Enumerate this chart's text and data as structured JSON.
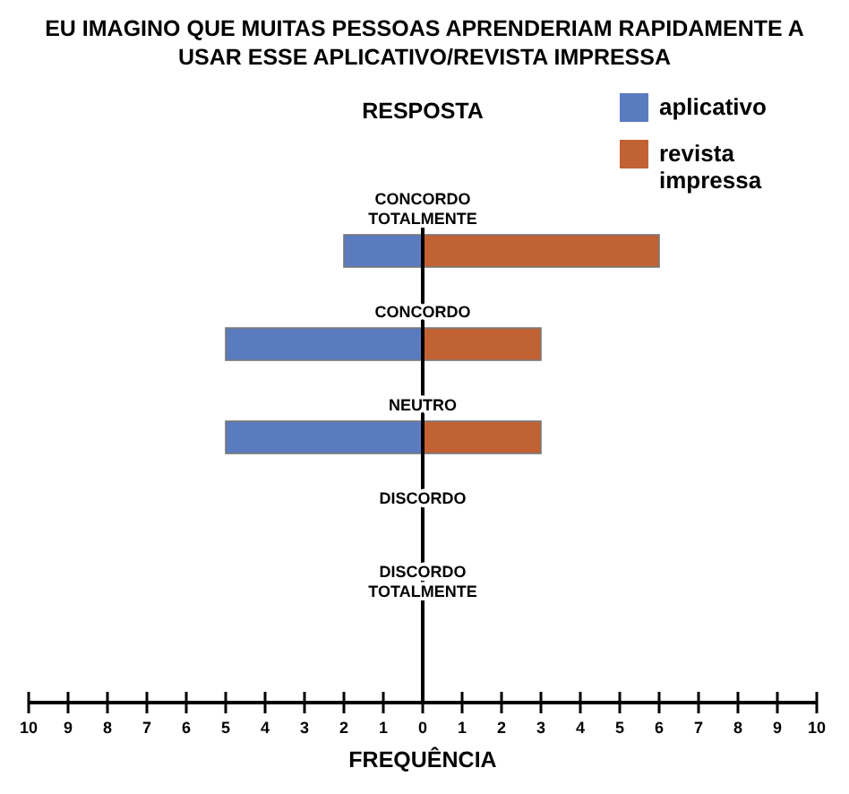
{
  "chart_data": {
    "type": "bar",
    "orientation": "horizontal",
    "stacked": true,
    "title": "EU IMAGINO QUE MUITAS PESSOAS APRENDERIAM RAPIDAMENTE A USAR ESSE APLICATIVO/REVISTA IMPRESSA",
    "ylabel": "RESPOSTA",
    "xlabel": "FREQUÊNCIA",
    "categories": [
      "CONCORDO TOTALMENTE",
      "CONCORDO",
      "NEUTRO",
      "DISCORDO",
      "DISCORDO TOTALMENTE"
    ],
    "series": [
      {
        "name": "aplicativo",
        "color": "#5b7bbf",
        "values": [
          -2,
          -5,
          -5,
          0,
          0
        ]
      },
      {
        "name": "revista impressa",
        "color": "#c06234",
        "values": [
          6,
          3,
          3,
          0,
          0
        ]
      }
    ],
    "xlim": [
      -10,
      10
    ],
    "xticks": [
      {
        "value": -10,
        "label": "10"
      },
      {
        "value": -9,
        "label": "9"
      },
      {
        "value": -8,
        "label": "8"
      },
      {
        "value": -7,
        "label": "7"
      },
      {
        "value": -6,
        "label": "6"
      },
      {
        "value": -5,
        "label": "5"
      },
      {
        "value": -4,
        "label": "4"
      },
      {
        "value": -3,
        "label": "3"
      },
      {
        "value": -2,
        "label": "2"
      },
      {
        "value": -1,
        "label": "1"
      },
      0,
      1,
      2,
      3,
      4,
      5,
      6,
      7,
      8,
      9,
      10
    ],
    "legend": "top right",
    "grid": false
  }
}
